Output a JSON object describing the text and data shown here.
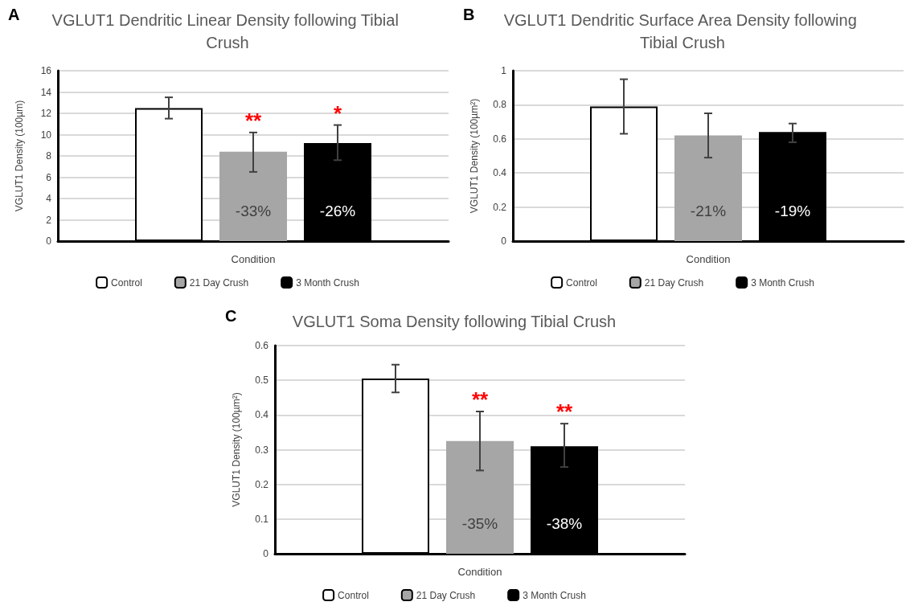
{
  "chart_data": [
    {
      "type": "bar",
      "title": "VGLUT1 Dendritic Linear Density following Tibial Crush",
      "xlabel": "Condition",
      "ylabel": "VGLUT1 Density (100µm)",
      "categories": [
        null
      ],
      "ylim": [
        0,
        16
      ],
      "yticks": [
        0,
        2,
        4,
        6,
        8,
        10,
        12,
        14,
        16
      ],
      "grid": "y",
      "legend": "bottom",
      "annotations": [
        "A",
        "**",
        "*",
        "-33%",
        "-26%"
      ],
      "series": [
        {
          "name": "Control",
          "color": "#ffffff",
          "values": [
            12.5
          ],
          "errors": [
            [
              11.5,
              13.5
            ]
          ]
        },
        {
          "name": "21 Day Crush",
          "color": "#a6a6a6",
          "values": [
            8.4
          ],
          "errors": [
            [
              6.5,
              10.2
            ]
          ]
        },
        {
          "name": "3 Month Crush",
          "color": "#000000",
          "values": [
            9.2
          ],
          "errors": [
            [
              7.6,
              10.9
            ]
          ]
        }
      ]
    },
    {
      "type": "bar",
      "title": "VGLUT1 Dendritic Surface Area Density following Tibial Crush",
      "xlabel": "Condition",
      "ylabel": "VGLUT1 Density (100µm²)",
      "categories": [
        null
      ],
      "ylim": [
        0,
        1
      ],
      "yticks": [
        0,
        0.2,
        0.4,
        0.6,
        0.8,
        1
      ],
      "grid": "y",
      "legend": "bottom",
      "annotations": [
        "B",
        "-21%",
        "-19%"
      ],
      "series": [
        {
          "name": "Control",
          "color": "#ffffff",
          "values": [
            0.79
          ],
          "errors": [
            [
              0.63,
              0.95
            ]
          ]
        },
        {
          "name": "21 Day Crush",
          "color": "#a6a6a6",
          "values": [
            0.62
          ],
          "errors": [
            [
              0.49,
              0.75
            ]
          ]
        },
        {
          "name": "3 Month Crush",
          "color": "#000000",
          "values": [
            0.64
          ],
          "errors": [
            [
              0.58,
              0.69
            ]
          ]
        }
      ]
    },
    {
      "type": "bar",
      "title": "VGLUT1 Soma Density following Tibial Crush",
      "xlabel": "Condition",
      "ylabel": "VGLUT1 Density (100µm²)",
      "categories": [
        null
      ],
      "ylim": [
        0,
        0.6
      ],
      "yticks": [
        0,
        0.1,
        0.2,
        0.3,
        0.4,
        0.5,
        0.6
      ],
      "grid": "y",
      "legend": "bottom",
      "annotations": [
        "C",
        "**",
        "**",
        "-35%",
        "-38%"
      ],
      "series": [
        {
          "name": "Control",
          "color": "#ffffff",
          "values": [
            0.505
          ],
          "errors": [
            [
              0.465,
              0.545
            ]
          ]
        },
        {
          "name": "21 Day Crush",
          "color": "#a6a6a6",
          "values": [
            0.325
          ],
          "errors": [
            [
              0.24,
              0.41
            ]
          ]
        },
        {
          "name": "3 Month Crush",
          "color": "#000000",
          "values": [
            0.31
          ],
          "errors": [
            [
              0.25,
              0.375
            ]
          ]
        }
      ]
    }
  ]
}
